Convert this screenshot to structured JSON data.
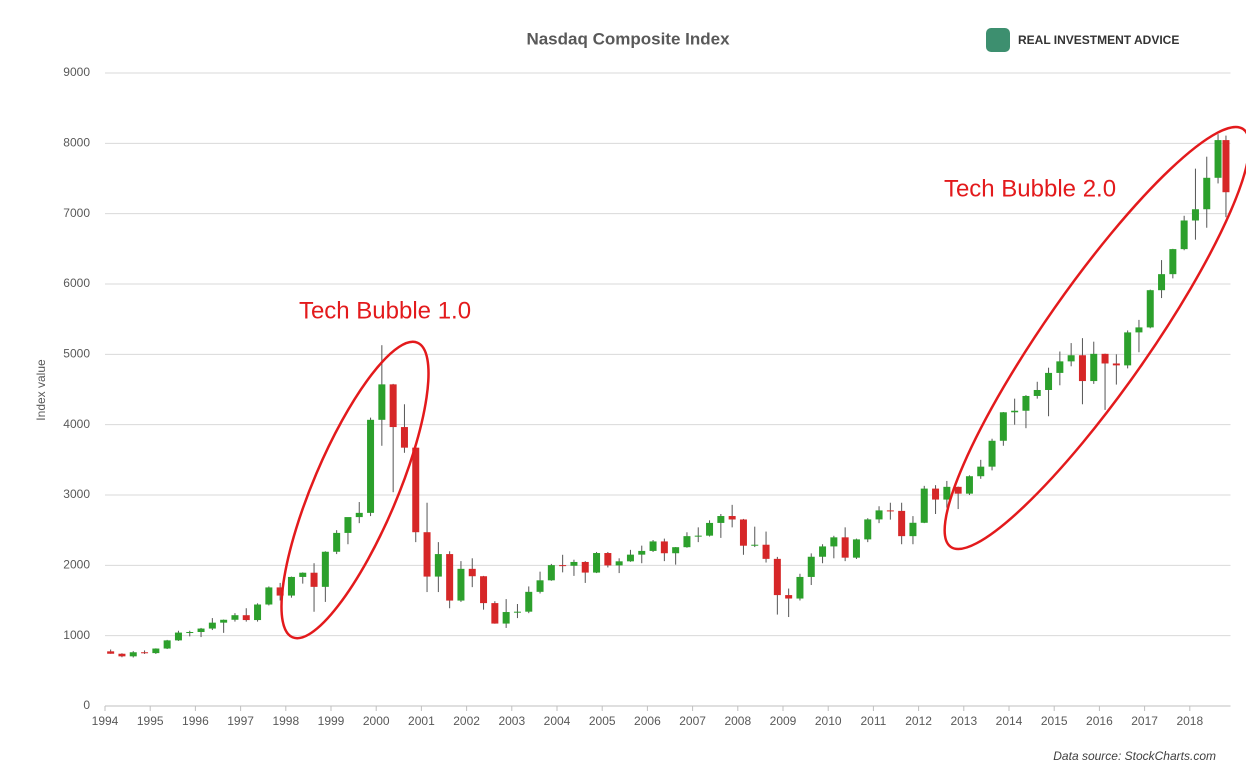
{
  "chart_data": {
    "type": "candlestick",
    "title": "Nasdaq Composite Index",
    "brand": "REAL INVESTMENT ADVICE",
    "y_label": "Index value",
    "source": "Data source: StockCharts.com",
    "annotations": [
      "Tech Bubble 1.0",
      "Tech Bubble 2.0"
    ],
    "up_color": "#2ca02c",
    "down_color": "#d62728",
    "grid": true,
    "xlim": [
      1994,
      2018.9
    ],
    "xticks": [
      1994,
      1995,
      1996,
      1997,
      1998,
      1999,
      2000,
      2001,
      2002,
      2003,
      2004,
      2005,
      2006,
      2007,
      2008,
      2009,
      2010,
      2011,
      2012,
      2013,
      2014,
      2015,
      2016,
      2017,
      2018
    ],
    "ylim": [
      0,
      9000
    ],
    "yticks": [
      0,
      1000,
      2000,
      3000,
      4000,
      5000,
      6000,
      7000,
      8000,
      9000
    ],
    "x": [
      1994.125,
      1994.375,
      1994.625,
      1994.875,
      1995.125,
      1995.375,
      1995.625,
      1995.875,
      1996.125,
      1996.375,
      1996.625,
      1996.875,
      1997.125,
      1997.375,
      1997.625,
      1997.875,
      1998.125,
      1998.375,
      1998.625,
      1998.875,
      1999.125,
      1999.375,
      1999.625,
      1999.875,
      2000.125,
      2000.375,
      2000.625,
      2000.875,
      2001.125,
      2001.375,
      2001.625,
      2001.875,
      2002.125,
      2002.375,
      2002.625,
      2002.875,
      2003.125,
      2003.375,
      2003.625,
      2003.875,
      2004.125,
      2004.375,
      2004.625,
      2004.875,
      2005.125,
      2005.375,
      2005.625,
      2005.875,
      2006.125,
      2006.375,
      2006.625,
      2006.875,
      2007.125,
      2007.375,
      2007.625,
      2007.875,
      2008.125,
      2008.375,
      2008.625,
      2008.875,
      2009.125,
      2009.375,
      2009.625,
      2009.875,
      2010.125,
      2010.375,
      2010.625,
      2010.875,
      2011.125,
      2011.375,
      2011.625,
      2011.875,
      2012.125,
      2012.375,
      2012.625,
      2012.875,
      2013.125,
      2013.375,
      2013.625,
      2013.875,
      2014.125,
      2014.375,
      2014.625,
      2014.875,
      2015.125,
      2015.375,
      2015.625,
      2015.875,
      2016.125,
      2016.375,
      2016.625,
      2016.875,
      2017.125,
      2017.375,
      2017.625,
      2017.875,
      2018.125,
      2018.375,
      2018.625,
      2018.8
    ],
    "open": [
      777,
      743,
      706,
      764,
      752,
      817,
      933,
      1044,
      1052,
      1101,
      1185,
      1226,
      1291,
      1222,
      1443,
      1686,
      1570,
      1835,
      1895,
      1694,
      2193,
      2461,
      2686,
      2746,
      4069,
      4573,
      3966,
      3673,
      2471,
      1840,
      2160,
      1499,
      1950,
      1845,
      1463,
      1172,
      1336,
      1341,
      1623,
      1787,
      2003,
      1994,
      2048,
      1897,
      2175,
      1999,
      2057,
      2152,
      2205,
      2340,
      2172,
      2258,
      2415,
      2422,
      2603,
      2701,
      2652,
      2279,
      2293,
      2092,
      1577,
      1528,
      1835,
      2122,
      2269,
      2398,
      2109,
      2369,
      2653,
      2781,
      2774,
      2415,
      2605,
      3091,
      2935,
      3116,
      3019,
      3267,
      3403,
      3771,
      4176,
      4198,
      4408,
      4493,
      4736,
      4900,
      4987,
      4620,
      5007,
      4870,
      4843,
      5312,
      5383,
      5912,
      6140,
      6496,
      6903,
      7063,
      7510,
      8046
    ],
    "high": [
      803,
      750,
      780,
      790,
      820,
      940,
      1070,
      1070,
      1110,
      1250,
      1230,
      1320,
      1390,
      1460,
      1700,
      1750,
      1840,
      1900,
      2030,
      2200,
      2500,
      2650,
      2900,
      4100,
      5130,
      4580,
      4290,
      3700,
      2890,
      2330,
      2200,
      2060,
      2100,
      1850,
      1490,
      1520,
      1450,
      1700,
      1910,
      2020,
      2150,
      2080,
      2060,
      2190,
      2190,
      2100,
      2220,
      2280,
      2360,
      2380,
      2260,
      2470,
      2540,
      2640,
      2730,
      2860,
      2660,
      2550,
      2480,
      2120,
      1670,
      1880,
      2170,
      2300,
      2420,
      2540,
      2380,
      2670,
      2840,
      2890,
      2890,
      2700,
      3130,
      3140,
      3200,
      3120,
      3280,
      3500,
      3800,
      4180,
      4370,
      4420,
      4610,
      4810,
      5040,
      5160,
      5230,
      5180,
      5010,
      5000,
      5340,
      5490,
      5920,
      6340,
      6500,
      6970,
      7640,
      7810,
      8130,
      8110
    ],
    "low": [
      743,
      693,
      690,
      740,
      740,
      810,
      925,
      990,
      980,
      1080,
      1040,
      1200,
      1200,
      1200,
      1430,
      1500,
      1540,
      1740,
      1340,
      1480,
      2160,
      2300,
      2600,
      2700,
      3700,
      3040,
      3600,
      2330,
      1620,
      1620,
      1390,
      1480,
      1690,
      1370,
      1170,
      1110,
      1250,
      1320,
      1600,
      1780,
      1900,
      1850,
      1750,
      1890,
      1970,
      1890,
      2050,
      2030,
      2190,
      2060,
      2010,
      2250,
      2330,
      2410,
      2390,
      2540,
      2150,
      2260,
      2040,
      1300,
      1265,
      1500,
      1720,
      2030,
      2100,
      2060,
      2090,
      2330,
      2600,
      2650,
      2300,
      2300,
      2600,
      2730,
      2820,
      2800,
      3000,
      3230,
      3350,
      3700,
      4000,
      3950,
      4370,
      4120,
      4560,
      4830,
      4290,
      4580,
      4210,
      4570,
      4800,
      5030,
      5370,
      5800,
      6080,
      6480,
      6630,
      6800,
      7430,
      6950
    ],
    "close": [
      743,
      706,
      764,
      752,
      817,
      933,
      1044,
      1052,
      1101,
      1185,
      1226,
      1291,
      1222,
      1443,
      1686,
      1570,
      1835,
      1895,
      1694,
      2193,
      2461,
      2686,
      2746,
      4069,
      4573,
      3966,
      3673,
      2471,
      1840,
      2160,
      1499,
      1950,
      1845,
      1463,
      1172,
      1336,
      1341,
      1623,
      1787,
      2003,
      1994,
      2048,
      1897,
      2175,
      1999,
      2057,
      2152,
      2205,
      2340,
      2172,
      2258,
      2415,
      2422,
      2603,
      2701,
      2652,
      2279,
      2293,
      2092,
      1577,
      1528,
      1835,
      2122,
      2269,
      2398,
      2109,
      2369,
      2653,
      2781,
      2774,
      2415,
      2605,
      3091,
      2935,
      3116,
      3019,
      3267,
      3403,
      3771,
      4176,
      4198,
      4408,
      4493,
      4736,
      4900,
      4987,
      4620,
      5007,
      4870,
      4843,
      5312,
      5383,
      5912,
      6140,
      6496,
      6903,
      7063,
      7510,
      8046,
      7305
    ]
  }
}
